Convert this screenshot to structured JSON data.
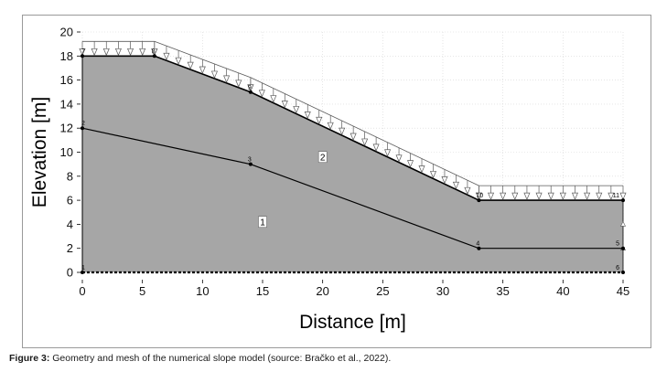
{
  "caption": {
    "label": "Figure 3:",
    "text": " Geometry and mesh of the numerical slope model (source: Bračko et al., 2022)."
  },
  "axes": {
    "xlabel": "Distance [m]",
    "ylabel": "Elevation [m]",
    "xlim": [
      0,
      45
    ],
    "ylim": [
      0,
      20
    ],
    "xticks": [
      0,
      5,
      10,
      15,
      20,
      25,
      30,
      35,
      40,
      45
    ],
    "yticks": [
      0,
      2,
      4,
      6,
      8,
      10,
      12,
      14,
      16,
      18,
      20
    ]
  },
  "geometry": {
    "points": [
      {
        "id": "1",
        "x": 0,
        "y": 0
      },
      {
        "id": "2",
        "x": 0,
        "y": 12
      },
      {
        "id": "3",
        "x": 14,
        "y": 9
      },
      {
        "id": "4",
        "x": 33,
        "y": 2
      },
      {
        "id": "5",
        "x": 45,
        "y": 2
      },
      {
        "id": "6",
        "x": 45,
        "y": 0
      },
      {
        "id": "7",
        "x": 0,
        "y": 18
      },
      {
        "id": "8",
        "x": 6,
        "y": 18
      },
      {
        "id": "9",
        "x": 14,
        "y": 15
      },
      {
        "id": "10",
        "x": 33,
        "y": 6
      },
      {
        "id": "11",
        "x": 45,
        "y": 6
      }
    ],
    "surface": [
      "7",
      "8",
      "9",
      "10",
      "11"
    ],
    "layer_boundary": [
      "2",
      "3",
      "4",
      "5"
    ],
    "regions": [
      {
        "label": "1",
        "x": 15,
        "y": 4.2
      },
      {
        "label": "2",
        "x": 20,
        "y": 9.6
      }
    ],
    "colors": {
      "soil": "#a6a6a6",
      "boundary": "#000000",
      "load": "#5a5a5a"
    }
  }
}
